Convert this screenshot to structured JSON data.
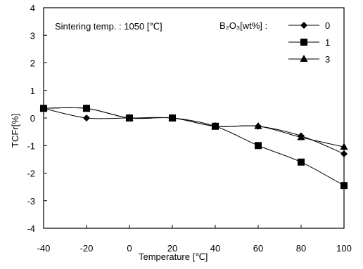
{
  "chart_data": {
    "type": "line",
    "title": "",
    "xlabel": "Temperature [℃]",
    "ylabel": "TCFr[%]",
    "xlim": [
      -40,
      100
    ],
    "ylim": [
      -4,
      4
    ],
    "xticks": [
      -40,
      -20,
      0,
      20,
      40,
      60,
      80,
      100
    ],
    "yticks": [
      -4,
      -3,
      -2,
      -1,
      0,
      1,
      2,
      3,
      4
    ],
    "grid": false,
    "legend_position": "top-right",
    "legend_title": "B₂O₃[wt%] :",
    "annotation": "Sintering temp. : 1050 [℃]",
    "x": [
      -40,
      -20,
      0,
      20,
      40,
      60,
      80,
      100
    ],
    "series": [
      {
        "name": "0",
        "marker": "diamond",
        "values": [
          0.35,
          0.0,
          0.0,
          0.0,
          -0.3,
          -0.3,
          -0.65,
          -1.3
        ]
      },
      {
        "name": "1",
        "marker": "square",
        "values": [
          0.35,
          0.35,
          0.0,
          0.0,
          -0.3,
          -1.0,
          -1.6,
          -2.45
        ]
      },
      {
        "name": "3",
        "marker": "triangle",
        "values": [
          0.35,
          0.35,
          0.0,
          0.0,
          -0.3,
          -0.3,
          -0.7,
          -1.05
        ]
      }
    ]
  }
}
